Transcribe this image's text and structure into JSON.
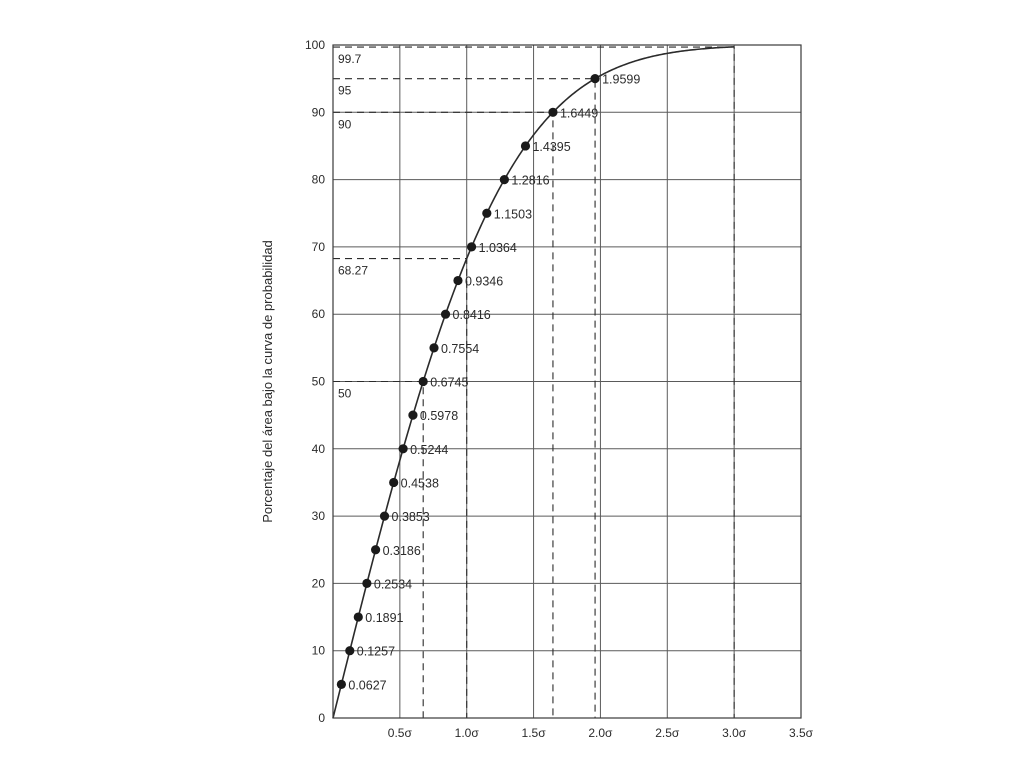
{
  "chart_data": {
    "type": "line",
    "title": "",
    "xlabel": "",
    "ylabel": "Porcentaje del área bajo la curva de probabilidad",
    "xlim": [
      0,
      3.5
    ],
    "ylim": [
      0,
      100
    ],
    "grid": true,
    "x_ticks": [
      {
        "value": 0.5,
        "label": "0.5σ"
      },
      {
        "value": 1.0,
        "label": "1.0σ"
      },
      {
        "value": 1.5,
        "label": "1.5σ"
      },
      {
        "value": 2.0,
        "label": "2.0σ"
      },
      {
        "value": 2.5,
        "label": "2.5σ"
      },
      {
        "value": 3.0,
        "label": "3.0σ"
      },
      {
        "value": 3.5,
        "label": "3.5σ"
      }
    ],
    "y_ticks": [
      {
        "value": 0,
        "label": "0"
      },
      {
        "value": 10,
        "label": "10"
      },
      {
        "value": 20,
        "label": "20"
      },
      {
        "value": 30,
        "label": "30"
      },
      {
        "value": 40,
        "label": "40"
      },
      {
        "value": 50,
        "label": "50"
      },
      {
        "value": 60,
        "label": "60"
      },
      {
        "value": 70,
        "label": "70"
      },
      {
        "value": 80,
        "label": "80"
      },
      {
        "value": 90,
        "label": "90"
      },
      {
        "value": 100,
        "label": "100"
      }
    ],
    "series": [
      {
        "points": [
          {
            "x": 0.0627,
            "y": 5,
            "label": "0.0627"
          },
          {
            "x": 0.1257,
            "y": 10,
            "label": "0.1257"
          },
          {
            "x": 0.1891,
            "y": 15,
            "label": "0.1891"
          },
          {
            "x": 0.2534,
            "y": 20,
            "label": "0.2534"
          },
          {
            "x": 0.3186,
            "y": 25,
            "label": "0.3186"
          },
          {
            "x": 0.3853,
            "y": 30,
            "label": "0.3853"
          },
          {
            "x": 0.4538,
            "y": 35,
            "label": "0.4538"
          },
          {
            "x": 0.5244,
            "y": 40,
            "label": "0.5244"
          },
          {
            "x": 0.5978,
            "y": 45,
            "label": "0.5978"
          },
          {
            "x": 0.6745,
            "y": 50,
            "label": "0.6745"
          },
          {
            "x": 0.7554,
            "y": 55,
            "label": "0.7554"
          },
          {
            "x": 0.8416,
            "y": 60,
            "label": "0.8416"
          },
          {
            "x": 0.9346,
            "y": 65,
            "label": "0.9346"
          },
          {
            "x": 1.0364,
            "y": 70,
            "label": "1.0364"
          },
          {
            "x": 1.1503,
            "y": 75,
            "label": "1.1503"
          },
          {
            "x": 1.2816,
            "y": 80,
            "label": "1.2816"
          },
          {
            "x": 1.4395,
            "y": 85,
            "label": "1.4395"
          },
          {
            "x": 1.6449,
            "y": 90,
            "label": "1.6449"
          },
          {
            "x": 1.9599,
            "y": 95,
            "label": "1.9599"
          }
        ]
      }
    ],
    "reference_lines": [
      {
        "x": 0.6745,
        "y": 50,
        "label": "50"
      },
      {
        "x": 1.0,
        "y": 68.27,
        "label": "68.27"
      },
      {
        "x": 1.6449,
        "y": 90,
        "label": "90"
      },
      {
        "x": 1.9599,
        "y": 95,
        "label": "95"
      },
      {
        "x": 3.0,
        "y": 99.7,
        "label": "99.7"
      }
    ]
  }
}
